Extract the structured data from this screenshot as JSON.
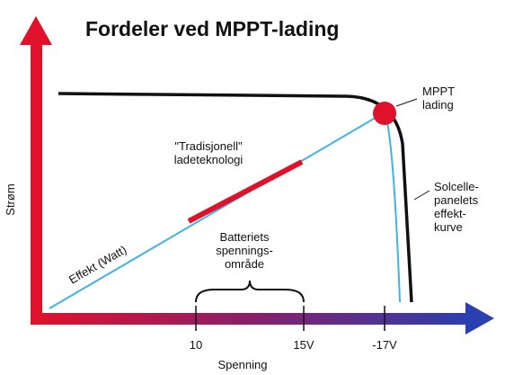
{
  "title": "Fordeler ved MPPT-lading",
  "y_axis_label": "Strøm",
  "x_axis_label": "Spenning",
  "x_ticks": [
    "10",
    "15V",
    "-17V"
  ],
  "labels": {
    "mppt": [
      "MPPT",
      "lading"
    ],
    "traditional": [
      "\"Tradisjonell\"",
      "ladeteknologi"
    ],
    "power": "Effekt (Watt)",
    "battery_range": [
      "Batteriets",
      "spennings-",
      "område"
    ],
    "panel_curve": [
      "Solcelle-",
      "panelets",
      "effekt-",
      "kurve"
    ]
  }
}
